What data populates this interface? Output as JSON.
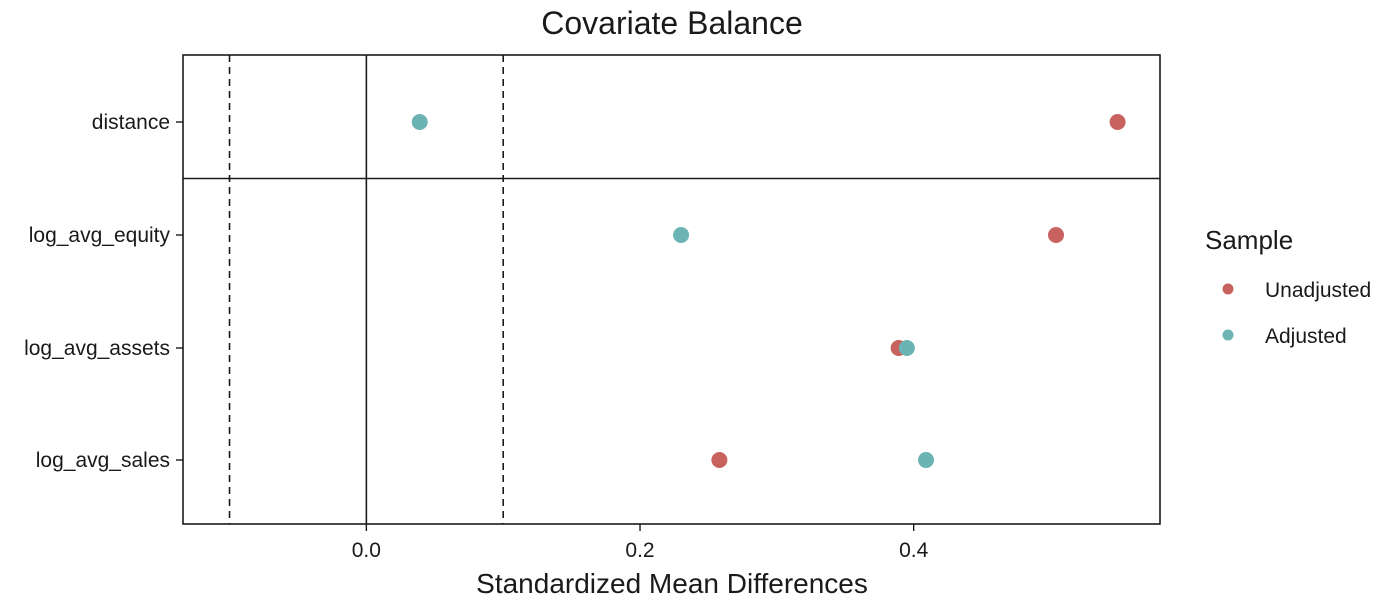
{
  "chart_data": {
    "type": "scatter",
    "title": "Covariate Balance",
    "xlabel": "Standardized Mean Differences",
    "ylabel": "",
    "xlim": [
      -0.134,
      0.58
    ],
    "x_ticks": [
      0.0,
      0.2,
      0.4
    ],
    "x_tick_labels": [
      "0.0",
      "0.2",
      "0.4"
    ],
    "reference_lines": {
      "solid": 0.0,
      "dashed": [
        -0.1,
        0.1
      ]
    },
    "grid": false,
    "categories": [
      "distance",
      "log_avg_equity",
      "log_avg_assets",
      "log_avg_sales"
    ],
    "separator_after_category": "distance",
    "legend": {
      "title": "Sample",
      "placement": "right"
    },
    "series": [
      {
        "name": "Unadjusted",
        "color": "#C8625F",
        "values": [
          0.549,
          0.504,
          0.389,
          0.258
        ]
      },
      {
        "name": "Adjusted",
        "color": "#6CB3B3",
        "values": [
          0.039,
          0.23,
          0.395,
          0.409
        ]
      }
    ]
  }
}
